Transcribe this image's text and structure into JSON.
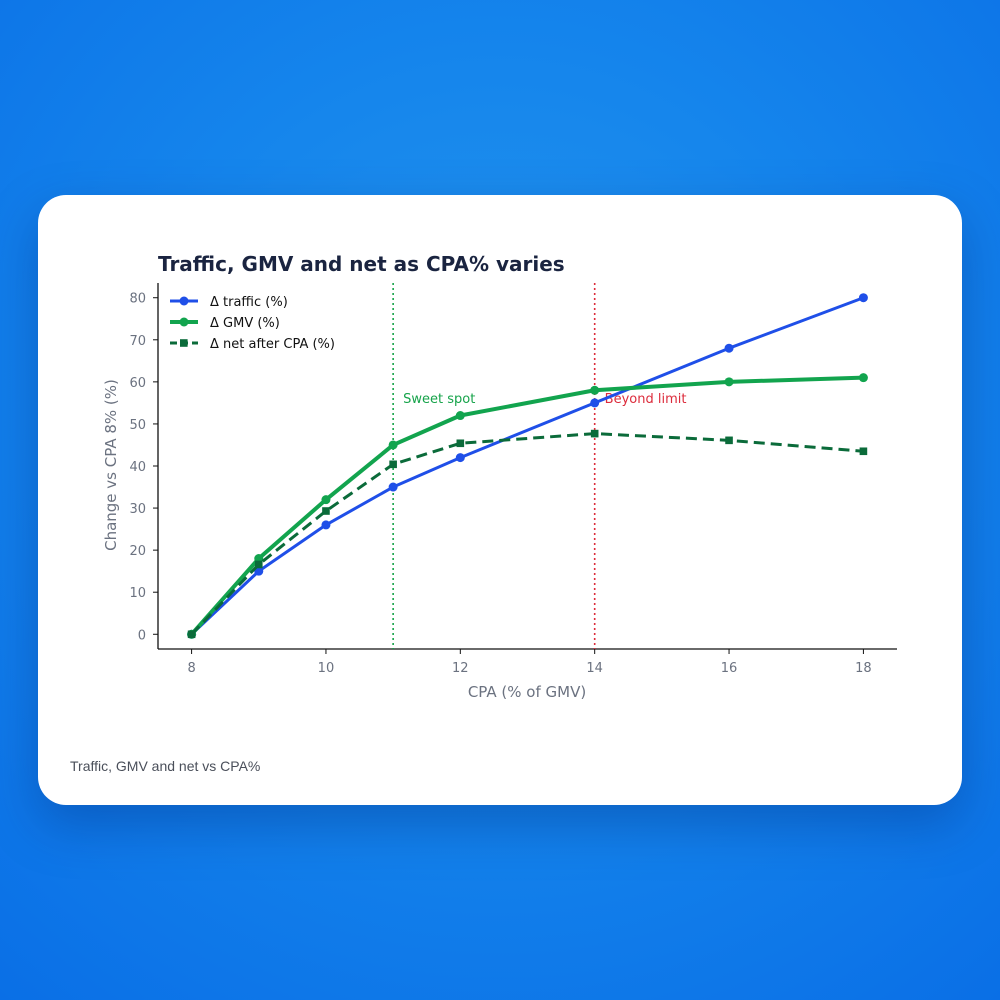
{
  "caption": "Traffic, GMV and net vs CPA%",
  "colors": {
    "traffic": "#1f4fe8",
    "gmv": "#12a44e",
    "net": "#0b6b3a",
    "sweet": "#16a34a",
    "limit": "#dc2c3c",
    "title": "#1a2440",
    "axis_text": "#6b7280"
  },
  "chart_data": {
    "type": "line",
    "title": "Traffic, GMV and net as CPA% varies",
    "xlabel": "CPA (% of GMV)",
    "ylabel": "Change vs CPA 8% (%)",
    "xlim": [
      7.5,
      18.5
    ],
    "ylim": [
      -3.5,
      83.5
    ],
    "xticks": [
      8,
      10,
      12,
      14,
      16,
      18
    ],
    "yticks": [
      0,
      10,
      20,
      30,
      40,
      50,
      60,
      70,
      80
    ],
    "grid": false,
    "legend_position": "top-left",
    "x": [
      8,
      9,
      10,
      11,
      12,
      14,
      16,
      18
    ],
    "series": [
      {
        "name": "Δ traffic (%)",
        "values": [
          0,
          15,
          26,
          35,
          42,
          55,
          68,
          80
        ],
        "marker": "circle",
        "dashed": false
      },
      {
        "name": "Δ GMV (%)",
        "values": [
          0,
          18,
          32,
          45,
          52,
          58,
          60,
          61
        ],
        "marker": "circle",
        "dashed": false
      },
      {
        "name": "Δ net after CPA (%)",
        "values": [
          0,
          16.6,
          29.3,
          40.4,
          45.4,
          47.7,
          46.1,
          43.5
        ],
        "marker": "square",
        "dashed": true
      }
    ],
    "annotations": [
      {
        "x": 11,
        "label": "Sweet spot",
        "style": "dotted",
        "color_key": "sweet"
      },
      {
        "x": 14,
        "label": "Beyond limit",
        "style": "dotted",
        "color_key": "limit"
      }
    ]
  }
}
